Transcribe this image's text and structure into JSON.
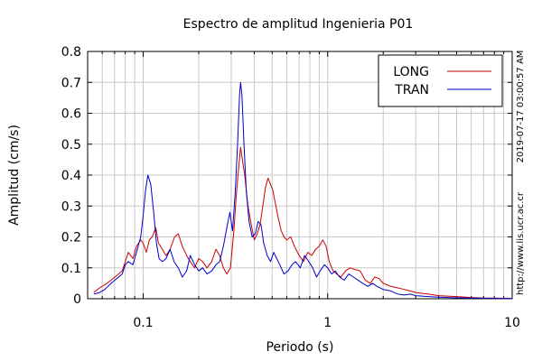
{
  "chart_data": {
    "type": "line",
    "title": "Espectro de amplitud Ingenieria P01",
    "xlabel": "Periodo (s)",
    "ylabel": "Amplitud (cm/s)",
    "x_scale": "log",
    "xlim": [
      0.05,
      10
    ],
    "ylim": [
      0,
      0.8
    ],
    "x_ticks": [
      {
        "value": 0.1,
        "label": "0.1"
      },
      {
        "value": 1,
        "label": "1"
      },
      {
        "value": 10,
        "label": "10"
      }
    ],
    "y_ticks": [
      {
        "value": 0,
        "label": "0"
      },
      {
        "value": 0.1,
        "label": "0.1"
      },
      {
        "value": 0.2,
        "label": "0.2"
      },
      {
        "value": 0.3,
        "label": "0.3"
      },
      {
        "value": 0.4,
        "label": "0.4"
      },
      {
        "value": 0.5,
        "label": "0.5"
      },
      {
        "value": 0.6,
        "label": "0.6"
      },
      {
        "value": 0.7,
        "label": "0.7"
      },
      {
        "value": 0.8,
        "label": "0.8"
      }
    ],
    "grid": true,
    "legend_position": "top-right",
    "side_text_right": "2019-07-17 03:00:57 AM",
    "side_text_bottom_right": "http://www.lis.ucr.ac.cr",
    "series": [
      {
        "name": "LONG",
        "color": "#cc0000",
        "points": [
          [
            0.054,
            0.02
          ],
          [
            0.058,
            0.035
          ],
          [
            0.062,
            0.045
          ],
          [
            0.067,
            0.06
          ],
          [
            0.072,
            0.075
          ],
          [
            0.077,
            0.09
          ],
          [
            0.08,
            0.12
          ],
          [
            0.083,
            0.15
          ],
          [
            0.088,
            0.13
          ],
          [
            0.092,
            0.17
          ],
          [
            0.097,
            0.19
          ],
          [
            0.1,
            0.18
          ],
          [
            0.104,
            0.15
          ],
          [
            0.108,
            0.19
          ],
          [
            0.112,
            0.2
          ],
          [
            0.117,
            0.23
          ],
          [
            0.121,
            0.18
          ],
          [
            0.127,
            0.16
          ],
          [
            0.133,
            0.14
          ],
          [
            0.14,
            0.16
          ],
          [
            0.148,
            0.2
          ],
          [
            0.155,
            0.21
          ],
          [
            0.163,
            0.17
          ],
          [
            0.172,
            0.14
          ],
          [
            0.18,
            0.12
          ],
          [
            0.19,
            0.1
          ],
          [
            0.2,
            0.13
          ],
          [
            0.21,
            0.12
          ],
          [
            0.222,
            0.1
          ],
          [
            0.235,
            0.12
          ],
          [
            0.248,
            0.16
          ],
          [
            0.26,
            0.14
          ],
          [
            0.272,
            0.1
          ],
          [
            0.284,
            0.08
          ],
          [
            0.297,
            0.1
          ],
          [
            0.31,
            0.22
          ],
          [
            0.32,
            0.34
          ],
          [
            0.33,
            0.43
          ],
          [
            0.337,
            0.49
          ],
          [
            0.345,
            0.45
          ],
          [
            0.355,
            0.4
          ],
          [
            0.37,
            0.3
          ],
          [
            0.385,
            0.24
          ],
          [
            0.4,
            0.19
          ],
          [
            0.415,
            0.21
          ],
          [
            0.43,
            0.24
          ],
          [
            0.445,
            0.3
          ],
          [
            0.46,
            0.36
          ],
          [
            0.475,
            0.39
          ],
          [
            0.49,
            0.37
          ],
          [
            0.505,
            0.35
          ],
          [
            0.52,
            0.31
          ],
          [
            0.54,
            0.26
          ],
          [
            0.56,
            0.22
          ],
          [
            0.58,
            0.2
          ],
          [
            0.6,
            0.19
          ],
          [
            0.63,
            0.2
          ],
          [
            0.66,
            0.17
          ],
          [
            0.7,
            0.14
          ],
          [
            0.74,
            0.12
          ],
          [
            0.78,
            0.15
          ],
          [
            0.82,
            0.14
          ],
          [
            0.86,
            0.16
          ],
          [
            0.9,
            0.17
          ],
          [
            0.94,
            0.19
          ],
          [
            0.98,
            0.17
          ],
          [
            1.02,
            0.12
          ],
          [
            1.07,
            0.09
          ],
          [
            1.12,
            0.08
          ],
          [
            1.18,
            0.07
          ],
          [
            1.25,
            0.09
          ],
          [
            1.32,
            0.1
          ],
          [
            1.4,
            0.095
          ],
          [
            1.5,
            0.09
          ],
          [
            1.6,
            0.06
          ],
          [
            1.7,
            0.05
          ],
          [
            1.8,
            0.07
          ],
          [
            1.9,
            0.065
          ],
          [
            2.0,
            0.05
          ],
          [
            2.2,
            0.04
          ],
          [
            2.4,
            0.035
          ],
          [
            2.6,
            0.03
          ],
          [
            2.8,
            0.025
          ],
          [
            3.0,
            0.02
          ],
          [
            3.5,
            0.015
          ],
          [
            4.0,
            0.01
          ],
          [
            5.0,
            0.007
          ],
          [
            6.0,
            0.004
          ],
          [
            7.0,
            0.002
          ],
          [
            8.0,
            0.002
          ],
          [
            10.0,
            0.001
          ]
        ]
      },
      {
        "name": "TRAN",
        "color": "#0000cc",
        "points": [
          [
            0.054,
            0.015
          ],
          [
            0.058,
            0.02
          ],
          [
            0.062,
            0.03
          ],
          [
            0.067,
            0.05
          ],
          [
            0.072,
            0.065
          ],
          [
            0.077,
            0.08
          ],
          [
            0.08,
            0.11
          ],
          [
            0.083,
            0.12
          ],
          [
            0.088,
            0.11
          ],
          [
            0.092,
            0.15
          ],
          [
            0.097,
            0.2
          ],
          [
            0.1,
            0.27
          ],
          [
            0.103,
            0.35
          ],
          [
            0.106,
            0.4
          ],
          [
            0.11,
            0.37
          ],
          [
            0.114,
            0.28
          ],
          [
            0.118,
            0.18
          ],
          [
            0.122,
            0.13
          ],
          [
            0.127,
            0.12
          ],
          [
            0.133,
            0.13
          ],
          [
            0.14,
            0.16
          ],
          [
            0.147,
            0.12
          ],
          [
            0.155,
            0.1
          ],
          [
            0.163,
            0.07
          ],
          [
            0.172,
            0.09
          ],
          [
            0.18,
            0.14
          ],
          [
            0.19,
            0.11
          ],
          [
            0.2,
            0.09
          ],
          [
            0.21,
            0.1
          ],
          [
            0.222,
            0.08
          ],
          [
            0.235,
            0.09
          ],
          [
            0.248,
            0.11
          ],
          [
            0.26,
            0.12
          ],
          [
            0.272,
            0.17
          ],
          [
            0.284,
            0.23
          ],
          [
            0.295,
            0.28
          ],
          [
            0.305,
            0.22
          ],
          [
            0.315,
            0.34
          ],
          [
            0.325,
            0.5
          ],
          [
            0.333,
            0.66
          ],
          [
            0.337,
            0.7
          ],
          [
            0.343,
            0.66
          ],
          [
            0.352,
            0.5
          ],
          [
            0.362,
            0.35
          ],
          [
            0.375,
            0.25
          ],
          [
            0.39,
            0.2
          ],
          [
            0.405,
            0.21
          ],
          [
            0.42,
            0.25
          ],
          [
            0.435,
            0.24
          ],
          [
            0.45,
            0.18
          ],
          [
            0.47,
            0.14
          ],
          [
            0.49,
            0.12
          ],
          [
            0.51,
            0.15
          ],
          [
            0.53,
            0.13
          ],
          [
            0.55,
            0.11
          ],
          [
            0.58,
            0.08
          ],
          [
            0.61,
            0.09
          ],
          [
            0.64,
            0.11
          ],
          [
            0.67,
            0.12
          ],
          [
            0.71,
            0.1
          ],
          [
            0.75,
            0.14
          ],
          [
            0.79,
            0.12
          ],
          [
            0.83,
            0.1
          ],
          [
            0.87,
            0.07
          ],
          [
            0.91,
            0.09
          ],
          [
            0.96,
            0.11
          ],
          [
            1.0,
            0.1
          ],
          [
            1.05,
            0.08
          ],
          [
            1.1,
            0.09
          ],
          [
            1.16,
            0.07
          ],
          [
            1.23,
            0.06
          ],
          [
            1.3,
            0.08
          ],
          [
            1.38,
            0.07
          ],
          [
            1.46,
            0.06
          ],
          [
            1.55,
            0.05
          ],
          [
            1.65,
            0.04
          ],
          [
            1.75,
            0.05
          ],
          [
            1.85,
            0.04
          ],
          [
            2.0,
            0.03
          ],
          [
            2.2,
            0.025
          ],
          [
            2.4,
            0.015
          ],
          [
            2.6,
            0.012
          ],
          [
            2.8,
            0.015
          ],
          [
            3.0,
            0.01
          ],
          [
            3.5,
            0.007
          ],
          [
            4.0,
            0.005
          ],
          [
            5.0,
            0.003
          ],
          [
            6.0,
            0.002
          ],
          [
            8.0,
            0.001
          ],
          [
            10.0,
            0.001
          ]
        ]
      }
    ]
  }
}
